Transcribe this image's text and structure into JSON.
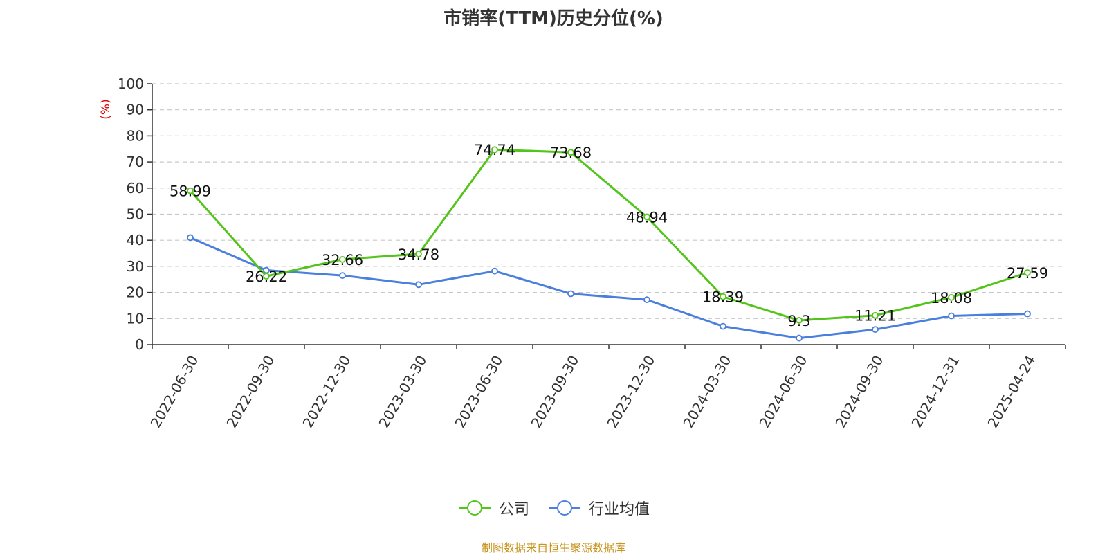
{
  "chart_data": {
    "type": "line",
    "title": "市销率(TTM)历史分位(%)",
    "ylabel": "(%)",
    "ylim": [
      0,
      100
    ],
    "yticks": [
      0,
      10,
      20,
      30,
      40,
      50,
      60,
      70,
      80,
      90,
      100
    ],
    "grid": true,
    "legend_position": "bottom",
    "categories": [
      "2022-06-30",
      "2022-09-30",
      "2022-12-30",
      "2023-03-30",
      "2023-06-30",
      "2023-09-30",
      "2023-12-30",
      "2024-03-30",
      "2024-06-30",
      "2024-09-30",
      "2024-12-31",
      "2025-04-24"
    ],
    "series": [
      {
        "name": "公司",
        "color": "#52c41a",
        "values": [
          58.99,
          26.22,
          32.66,
          34.78,
          74.74,
          73.68,
          48.94,
          18.39,
          9.3,
          11.21,
          18.08,
          27.59
        ],
        "labels": [
          "58.99",
          "26.22",
          "32.66",
          "34.78",
          "74.74",
          "73.68",
          "48.94",
          "18.39",
          "9.3",
          "11.21",
          "18.08",
          "27.59"
        ]
      },
      {
        "name": "行业均值",
        "color": "#4a7fdc",
        "values": [
          41,
          28.5,
          26.5,
          23,
          28.2,
          19.5,
          17.2,
          7,
          2.5,
          5.8,
          11,
          11.8
        ]
      }
    ]
  },
  "footer": {
    "source": "制图数据来自恒生聚源数据库"
  }
}
